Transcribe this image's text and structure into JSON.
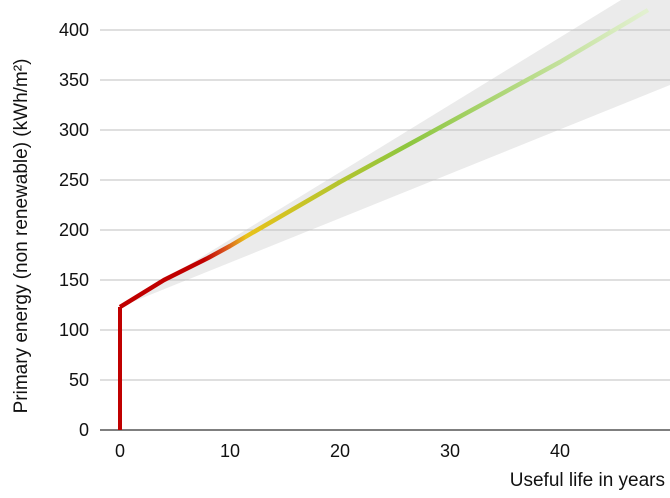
{
  "chart_data": {
    "type": "line",
    "xlabel": "Useful life in years",
    "ylabel": "Primary energy (non renewable) (kWh/m²)",
    "xlim": [
      -8,
      50
    ],
    "ylim": [
      0,
      420
    ],
    "x_ticks": [
      "0",
      "10",
      "20",
      "30",
      "40"
    ],
    "x_tick_values": [
      0,
      10,
      20,
      30,
      40
    ],
    "y_ticks": [
      "0",
      "50",
      "100",
      "150",
      "200",
      "250",
      "300",
      "350",
      "400"
    ],
    "y_tick_values": [
      0,
      50,
      100,
      150,
      200,
      250,
      300,
      350,
      400
    ],
    "grid": "horizontal",
    "series": [
      {
        "x": [
          0,
          0,
          4,
          8,
          10,
          12,
          20,
          30,
          40,
          48
        ],
        "y": [
          0,
          123,
          150,
          172,
          184,
          197,
          248,
          308,
          368,
          420
        ]
      }
    ],
    "uncertainty_band": {
      "x": [
        0,
        50,
        50
      ],
      "y_upper": [
        123,
        460,
        460
      ],
      "y_lower": [
        123,
        345,
        345
      ],
      "color": "#ebebeb"
    },
    "colors": {
      "axis": "#333333",
      "grid": "#bfbfbf",
      "line_start": "#c00000",
      "line_mid_1": "#d9531e",
      "line_mid_2": "#e8c21a",
      "line_mid_3": "#8dc63f",
      "line_end": "#e2f0d0"
    }
  }
}
